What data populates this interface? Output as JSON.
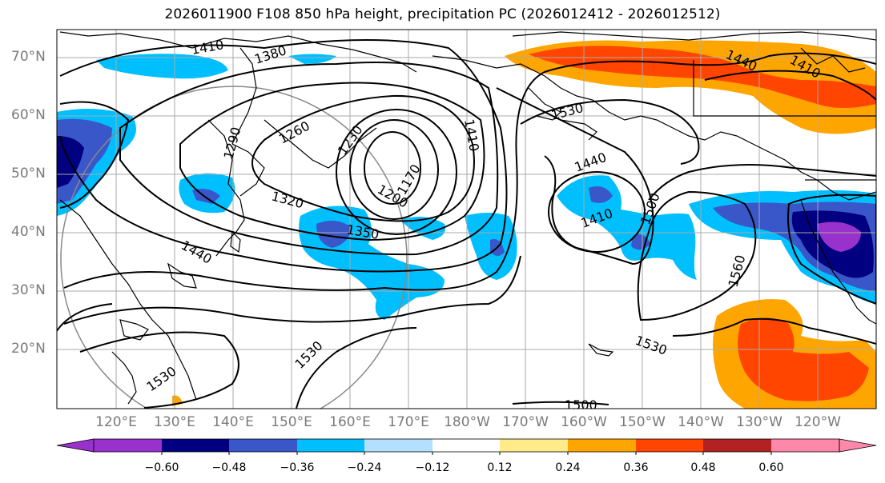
{
  "title": "2026011900 F108 850 hPa height, precipitation PC (2026012412 - 2026012512)",
  "lat_labels": [
    "70°N",
    "60°N",
    "50°N",
    "40°N",
    "30°N",
    "20°N"
  ],
  "lon_labels": [
    "120°E",
    "130°E",
    "140°E",
    "150°E",
    "160°E",
    "170°E",
    "180°W",
    "170°W",
    "160°W",
    "150°W",
    "140°W",
    "130°W",
    "120°W"
  ],
  "contour_labels": [
    "1410",
    "1380",
    "1440",
    "1410",
    "1530",
    "1410",
    "1440",
    "1260",
    "1290",
    "1230",
    "1170",
    "1200",
    "1320",
    "1350",
    "1410",
    "1500",
    "1440",
    "1560",
    "1530",
    "1530",
    "1530",
    "1500"
  ],
  "colorbar": {
    "colors": [
      "#9932CC",
      "#000080",
      "#3A57C9",
      "#00BFFF",
      "#B3E0FF",
      "#FFFFFF",
      "#FFEB8A",
      "#FFA500",
      "#FF4500",
      "#B22222",
      "#FF88AA"
    ],
    "ticks": [
      "−0.60",
      "−0.48",
      "−0.36",
      "−0.24",
      "−0.12",
      "0.12",
      "0.24",
      "0.36",
      "0.48",
      "0.60"
    ]
  }
}
